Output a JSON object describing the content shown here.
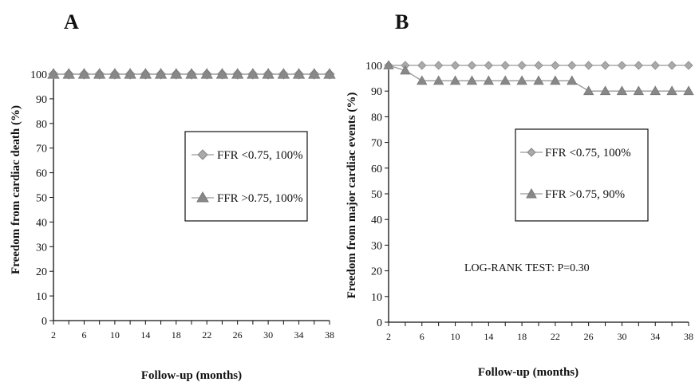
{
  "chart_data": [
    {
      "panel": "A",
      "type": "line",
      "xlabel": "Follow-up (months)",
      "ylabel": "Freedom from cardiac death  (%)",
      "xlim": [
        2,
        38
      ],
      "ylim": [
        0,
        100
      ],
      "x_ticks": [
        2,
        6,
        10,
        14,
        18,
        22,
        26,
        30,
        34,
        38
      ],
      "y_ticks": [
        0,
        10,
        20,
        30,
        40,
        50,
        60,
        70,
        80,
        90,
        100
      ],
      "series": [
        {
          "name": "FFR <0.75, 100%",
          "marker": "diamond",
          "x": [
            2,
            4,
            6,
            8,
            10,
            12,
            14,
            16,
            18,
            20,
            22,
            24,
            26,
            28,
            30,
            32,
            34,
            36,
            38
          ],
          "values": [
            100,
            100,
            100,
            100,
            100,
            100,
            100,
            100,
            100,
            100,
            100,
            100,
            100,
            100,
            100,
            100,
            100,
            100,
            100
          ]
        },
        {
          "name": "FFR >0.75, 100%",
          "marker": "triangle",
          "x": [
            2,
            4,
            6,
            8,
            10,
            12,
            14,
            16,
            18,
            20,
            22,
            24,
            26,
            28,
            30,
            32,
            34,
            36,
            38
          ],
          "values": [
            100,
            100,
            100,
            100,
            100,
            100,
            100,
            100,
            100,
            100,
            100,
            100,
            100,
            100,
            100,
            100,
            100,
            100,
            100
          ]
        }
      ],
      "grid": false,
      "legend_position": "right"
    },
    {
      "panel": "B",
      "type": "line",
      "xlabel": "Follow-up (months)",
      "ylabel": "Freedom from major cardiac events (%)",
      "xlim": [
        2,
        38
      ],
      "ylim": [
        0,
        100
      ],
      "x_ticks": [
        2,
        6,
        10,
        14,
        18,
        22,
        26,
        30,
        34,
        38
      ],
      "y_ticks": [
        0,
        10,
        20,
        30,
        40,
        50,
        60,
        70,
        80,
        90,
        100
      ],
      "annotation": "LOG-RANK TEST: P=0.30",
      "series": [
        {
          "name": "FFR <0.75, 100%",
          "marker": "diamond",
          "x": [
            2,
            4,
            6,
            8,
            10,
            12,
            14,
            16,
            18,
            20,
            22,
            24,
            26,
            28,
            30,
            32,
            34,
            36,
            38
          ],
          "values": [
            100,
            100,
            100,
            100,
            100,
            100,
            100,
            100,
            100,
            100,
            100,
            100,
            100,
            100,
            100,
            100,
            100,
            100,
            100
          ]
        },
        {
          "name": "FFR >0.75, 90%",
          "marker": "triangle",
          "x": [
            2,
            4,
            6,
            8,
            10,
            12,
            14,
            16,
            18,
            20,
            22,
            24,
            26,
            28,
            30,
            32,
            34,
            36,
            38
          ],
          "values": [
            100,
            98,
            94,
            94,
            94,
            94,
            94,
            94,
            94,
            94,
            94,
            94,
            90,
            90,
            90,
            90,
            90,
            90,
            90
          ]
        }
      ],
      "grid": false,
      "legend_position": "right"
    }
  ],
  "colors": {
    "axis": "#111111",
    "line": "#999999",
    "diamond_fill": "#aaaaaa",
    "triangle_fill": "#888888"
  }
}
